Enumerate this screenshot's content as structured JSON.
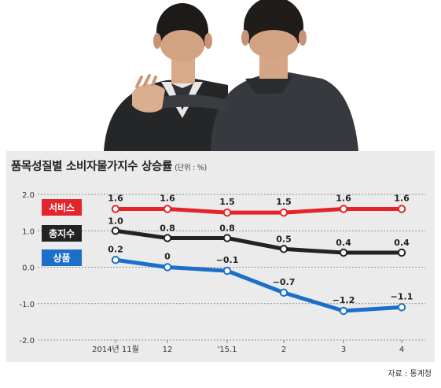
{
  "chart_data": {
    "type": "line",
    "title": "품목성질별 소비자물가지수 상승률",
    "unit_note": "(단위 : %)",
    "categories": [
      "2014년 11월",
      "12",
      "'15.1",
      "2",
      "3",
      "4"
    ],
    "ylim": [
      -2.0,
      2.0
    ],
    "yticks": [
      "2.0",
      "1.0",
      "0.0",
      "-1.0",
      "-2.0"
    ],
    "ytick_values": [
      2.0,
      1.0,
      0.0,
      -1.0,
      -2.0
    ],
    "grid": true,
    "series": [
      {
        "name": "서비스",
        "color": "#e3242b",
        "values": [
          1.6,
          1.6,
          1.5,
          1.5,
          1.6,
          1.6
        ],
        "labels": [
          "1.6",
          "1.6",
          "1.5",
          "1.5",
          "1.6",
          "1.6"
        ]
      },
      {
        "name": "총지수",
        "color": "#222222",
        "values": [
          1.0,
          0.8,
          0.8,
          0.5,
          0.4,
          0.4
        ],
        "labels": [
          "1.0",
          "0.8",
          "0.8",
          "0.5",
          "0.4",
          "0.4"
        ]
      },
      {
        "name": "상품",
        "color": "#1b6fc8",
        "values": [
          0.2,
          0.0,
          -0.1,
          -0.7,
          -1.2,
          -1.1
        ],
        "labels": [
          "0.2",
          "0",
          "−0.1",
          "−0.7",
          "−1.2",
          "−1.1"
        ]
      }
    ]
  },
  "source": "자료 : 통계청"
}
